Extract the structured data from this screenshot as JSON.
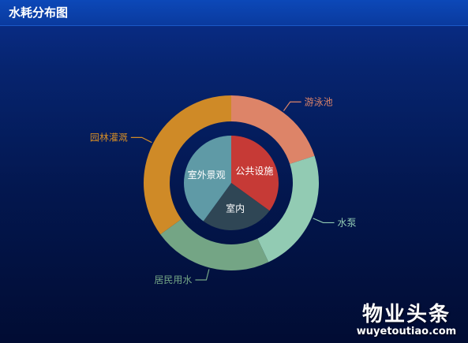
{
  "title": "水耗分布图",
  "watermark": {
    "main": "物业头条",
    "sub": "wuyetoutiao.com"
  },
  "chart_data": {
    "type": "pie",
    "legend": "none",
    "outer_ring": {
      "slices": [
        {
          "label": "游泳池",
          "value": 20,
          "color": "#dd8468"
        },
        {
          "label": "水泵",
          "value": 23,
          "color": "#92cbb3"
        },
        {
          "label": "居民用水",
          "value": 22,
          "color": "#74a585"
        },
        {
          "label": "园林灌溉",
          "value": 35,
          "color": "#cf8a27"
        }
      ]
    },
    "inner_pie": {
      "slices": [
        {
          "label": "公共设施",
          "value": 35,
          "color": "#c63a36"
        },
        {
          "label": "室内",
          "value": 25,
          "color": "#2f4655"
        },
        {
          "label": "室外景观",
          "value": 40,
          "color": "#5f9aa6"
        }
      ]
    }
  }
}
